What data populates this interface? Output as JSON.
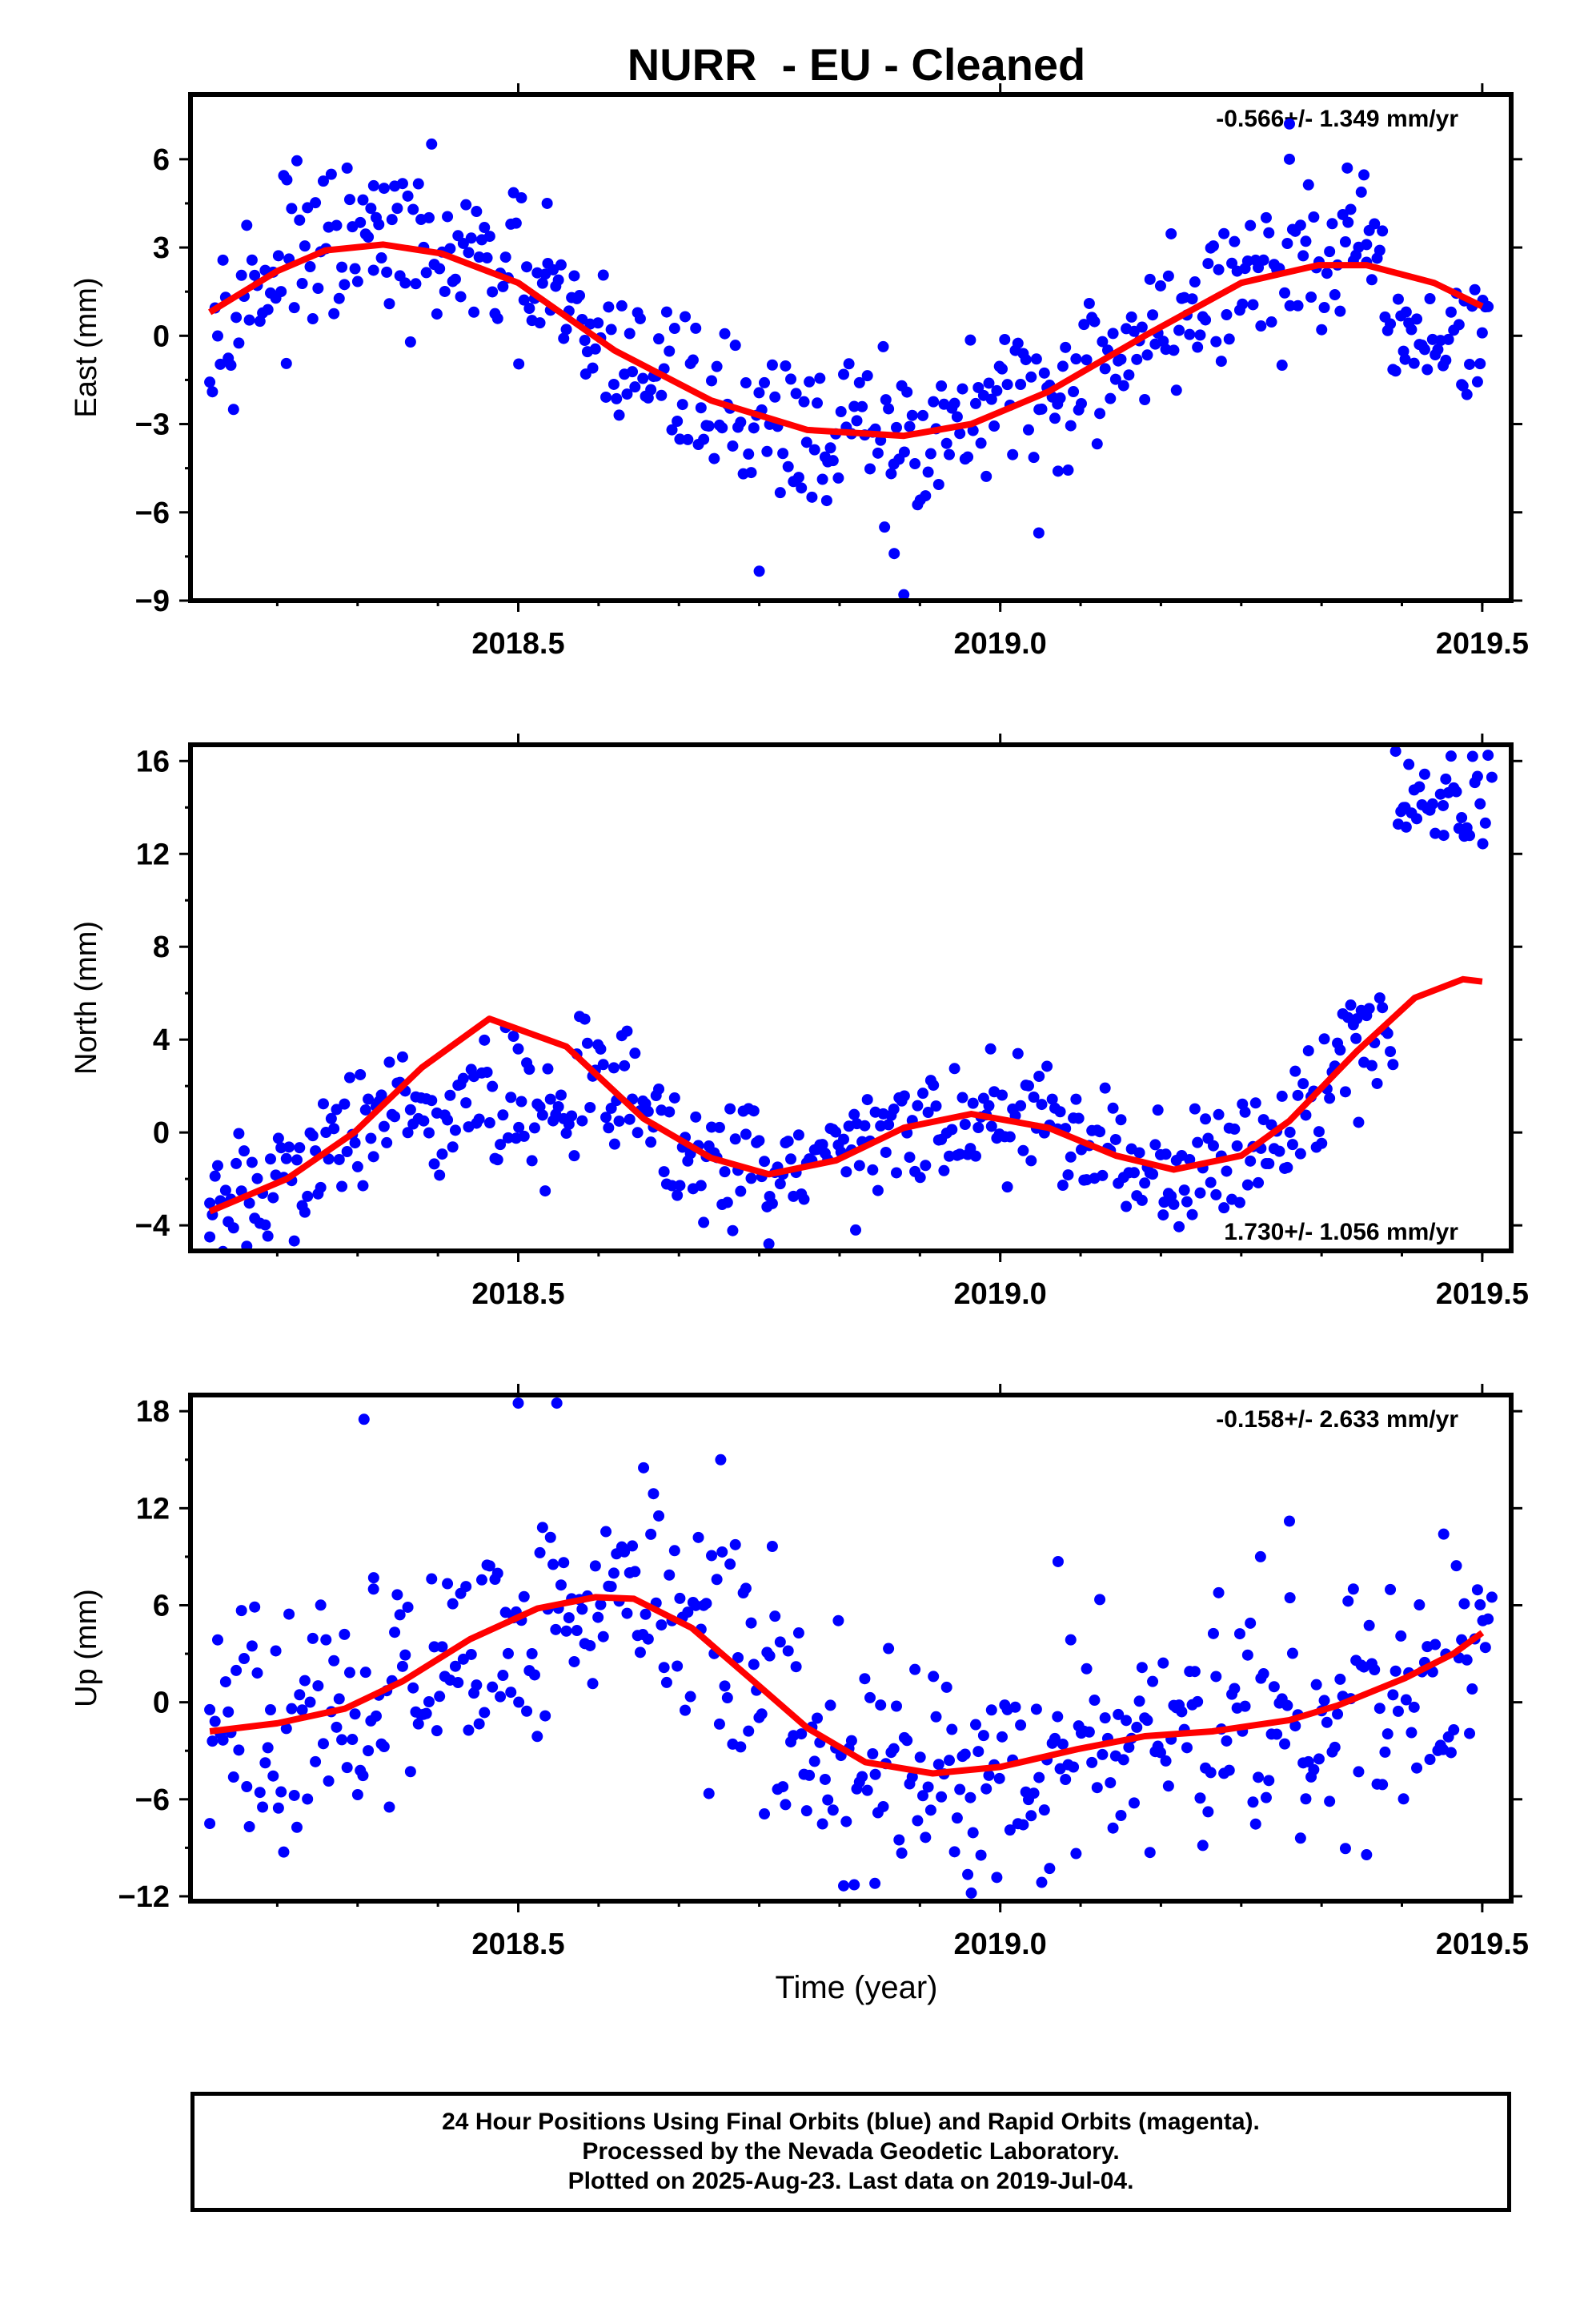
{
  "title": "NURR  - EU - Cleaned",
  "x_axis_title": "Time (year)",
  "footer": [
    "24 Hour Positions Using Final Orbits (blue) and Rapid Orbits (magenta).",
    "Processed by the Nevada Geodetic Laboratory.",
    "Plotted on 2025-Aug-23. Last data on 2019-Jul-04."
  ],
  "colors": {
    "points": "#0000ff",
    "fit": "#ff0000",
    "frame": "#000000"
  },
  "chart_data": [
    {
      "type": "scatter",
      "ylabel": "East (mm)",
      "rate_label": "-0.566+/- 1.349 mm/yr",
      "rate_position": "top-right",
      "xlim": [
        2018.16,
        2019.53
      ],
      "ylim": [
        -9,
        8.2
      ],
      "xticks": [
        2018.5,
        2019.0,
        2019.5
      ],
      "xtick_labels": [
        "2018.5",
        "2019.0",
        "2019.5"
      ],
      "yticks": [
        -9,
        -6,
        -3,
        0,
        3,
        6
      ],
      "ytick_labels": [
        "−9",
        "−6",
        "−3",
        "0",
        "3",
        "6"
      ],
      "series": [
        {
          "style": "points",
          "color": "#0000ff",
          "sample_points": [
            [
              2018.26,
              5.3
            ],
            [
              2018.35,
              5.1
            ],
            [
              2018.53,
              4.5
            ],
            [
              2018.57,
              -1.3
            ],
            [
              2018.75,
              -8.0
            ],
            [
              2018.82,
              -5.6
            ],
            [
              2018.88,
              -6.5
            ],
            [
              2018.89,
              -7.4
            ],
            [
              2018.9,
              -8.8
            ],
            [
              2019.04,
              -6.7
            ],
            [
              2019.06,
              -4.6
            ],
            [
              2019.3,
              7.2
            ],
            [
              2019.3,
              6.0
            ],
            [
              2019.36,
              5.7
            ],
            [
              2019.38,
              2.5
            ],
            [
              2019.42,
              -0.8
            ],
            [
              2019.48,
              -1.7
            ],
            [
              2019.5,
              0.1
            ]
          ]
        },
        {
          "style": "fit",
          "color": "#ff0000",
          "x": [
            2018.18,
            2018.25,
            2018.3,
            2018.36,
            2018.42,
            2018.5,
            2018.6,
            2018.7,
            2018.8,
            2018.9,
            2018.97,
            2019.05,
            2019.15,
            2019.25,
            2019.33,
            2019.38,
            2019.45,
            2019.5
          ],
          "y": [
            0.8,
            2.2,
            2.9,
            3.1,
            2.8,
            1.8,
            -0.5,
            -2.2,
            -3.2,
            -3.4,
            -3.0,
            -1.9,
            0.0,
            1.8,
            2.4,
            2.4,
            1.8,
            1.0
          ]
        }
      ]
    },
    {
      "type": "scatter",
      "ylabel": "North (mm)",
      "rate_label": "1.730+/- 1.056 mm/yr",
      "rate_position": "bottom-right",
      "xlim": [
        2018.16,
        2019.53
      ],
      "ylim": [
        -5.1,
        16.7
      ],
      "xticks": [
        2018.5,
        2019.0,
        2019.5
      ],
      "xtick_labels": [
        "2018.5",
        "2019.0",
        "2019.5"
      ],
      "yticks": [
        -4,
        0,
        4,
        8,
        12,
        16
      ],
      "ytick_labels": [
        "−4",
        "0",
        "4",
        "8",
        "12",
        "16"
      ],
      "series": [
        {
          "style": "points",
          "color": "#0000ff",
          "sample_points": [
            [
              2018.18,
              -4.5
            ],
            [
              2018.5,
              3.6
            ],
            [
              2018.6,
              -0.5
            ],
            [
              2018.76,
              -4.8
            ],
            [
              2018.85,
              -4.2
            ],
            [
              2018.99,
              3.6
            ],
            [
              2019.17,
              -3.0
            ],
            [
              2019.37,
              4.9
            ],
            [
              2019.42,
              14.0
            ],
            [
              2019.46,
              12.8
            ],
            [
              2019.49,
              16.2
            ],
            [
              2019.51,
              15.3
            ]
          ]
        },
        {
          "style": "fit",
          "color": "#ff0000",
          "x": [
            2018.18,
            2018.26,
            2018.33,
            2018.4,
            2018.47,
            2018.55,
            2018.63,
            2018.7,
            2018.76,
            2018.83,
            2018.9,
            2018.97,
            2019.05,
            2019.12,
            2019.18,
            2019.25,
            2019.3,
            2019.37,
            2019.43,
            2019.48,
            2019.5
          ],
          "y": [
            -3.4,
            -2.0,
            0.0,
            2.8,
            4.9,
            3.7,
            0.6,
            -1.1,
            -1.8,
            -1.2,
            0.2,
            0.8,
            0.2,
            -1.0,
            -1.6,
            -1.0,
            0.5,
            3.5,
            5.8,
            6.6,
            6.5
          ]
        }
      ]
    },
    {
      "type": "scatter",
      "ylabel": "Up (mm)",
      "rate_label": "-0.158+/- 2.633 mm/yr",
      "rate_position": "top-right",
      "xlim": [
        2018.16,
        2019.53
      ],
      "ylim": [
        -12.3,
        19
      ],
      "xticks": [
        2018.5,
        2019.0,
        2019.5
      ],
      "xtick_labels": [
        "2018.5",
        "2019.0",
        "2019.5"
      ],
      "yticks": [
        -12,
        -6,
        0,
        6,
        12,
        18
      ],
      "ytick_labels": [
        "−12",
        "−6",
        "0",
        "6",
        "12",
        "18"
      ],
      "series": [
        {
          "style": "points",
          "color": "#0000ff",
          "sample_points": [
            [
              2018.18,
              -7.5
            ],
            [
              2018.34,
              17.5
            ],
            [
              2018.35,
              7.7
            ],
            [
              2018.5,
              18.5
            ],
            [
              2018.54,
              18.5
            ],
            [
              2018.63,
              14.5
            ],
            [
              2018.71,
              15.0
            ],
            [
              2018.87,
              -11.2
            ],
            [
              2018.97,
              -11.8
            ],
            [
              2019.06,
              8.7
            ],
            [
              2019.27,
              9.0
            ],
            [
              2019.3,
              11.2
            ],
            [
              2019.46,
              10.4
            ],
            [
              2019.51,
              6.5
            ]
          ]
        },
        {
          "style": "fit",
          "color": "#ff0000",
          "x": [
            2018.18,
            2018.25,
            2018.32,
            2018.38,
            2018.45,
            2018.52,
            2018.58,
            2018.62,
            2018.68,
            2018.75,
            2018.8,
            2018.86,
            2018.93,
            2019.0,
            2019.08,
            2019.15,
            2019.22,
            2019.3,
            2019.35,
            2019.42,
            2019.47,
            2019.5
          ],
          "y": [
            -1.8,
            -1.3,
            -0.4,
            1.3,
            3.9,
            5.8,
            6.5,
            6.4,
            4.6,
            1.0,
            -1.6,
            -3.7,
            -4.4,
            -4.0,
            -2.9,
            -2.1,
            -1.8,
            -1.1,
            -0.2,
            1.5,
            3.0,
            4.3
          ]
        }
      ]
    }
  ]
}
